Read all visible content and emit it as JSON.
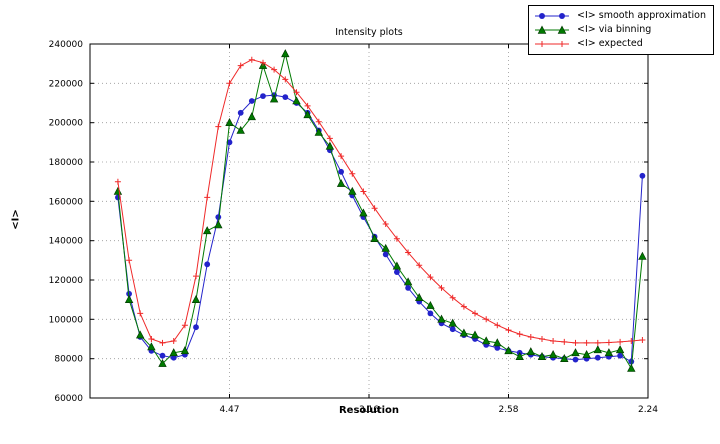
{
  "chart_data": {
    "type": "line",
    "title": "Intensity plots",
    "xlabel": "Resolution",
    "ylabel": "<I>",
    "grid": true,
    "legend_position": "upper right, outside plot top",
    "x_axis": {
      "range": [
        0,
        0.2
      ],
      "note": "reciprocal resolution squared scale; ticks labeled in Angstrom resolution",
      "ticks": [
        {
          "value": 0.05,
          "label": "4.47"
        },
        {
          "value": 0.1,
          "label": "3.16"
        },
        {
          "value": 0.15,
          "label": "2.58"
        },
        {
          "value": 0.2,
          "label": "2.24"
        }
      ]
    },
    "y_axis": {
      "range": [
        60000,
        240000
      ],
      "ticks": [
        {
          "value": 60000,
          "label": "60000"
        },
        {
          "value": 80000,
          "label": "80000"
        },
        {
          "value": 100000,
          "label": "100000"
        },
        {
          "value": 120000,
          "label": "120000"
        },
        {
          "value": 140000,
          "label": "140000"
        },
        {
          "value": 160000,
          "label": "160000"
        },
        {
          "value": 180000,
          "label": "180000"
        },
        {
          "value": 200000,
          "label": "200000"
        },
        {
          "value": 220000,
          "label": "220000"
        },
        {
          "value": 240000,
          "label": "240000"
        }
      ]
    },
    "x": [
      0.01,
      0.014,
      0.018,
      0.022,
      0.026,
      0.03,
      0.034,
      0.038,
      0.042,
      0.046,
      0.05,
      0.054,
      0.058,
      0.062,
      0.066,
      0.07,
      0.074,
      0.078,
      0.082,
      0.086,
      0.09,
      0.094,
      0.098,
      0.102,
      0.106,
      0.11,
      0.114,
      0.118,
      0.122,
      0.126,
      0.13,
      0.134,
      0.138,
      0.142,
      0.146,
      0.15,
      0.154,
      0.158,
      0.162,
      0.166,
      0.17,
      0.174,
      0.178,
      0.182,
      0.186,
      0.19,
      0.194,
      0.198
    ],
    "series": [
      {
        "id": "smooth-approximation",
        "name": "<I> smooth approximation",
        "color": "#2323cb",
        "marker": "circle",
        "values": [
          162000,
          113000,
          91000,
          84000,
          81500,
          80500,
          82000,
          96000,
          128000,
          152000,
          190000,
          205000,
          211000,
          213500,
          214000,
          213000,
          210000,
          205000,
          196000,
          186000,
          175000,
          163000,
          152000,
          142000,
          133000,
          124000,
          116000,
          109000,
          103000,
          98000,
          95000,
          92000,
          90000,
          87000,
          85500,
          84000,
          83000,
          82000,
          81000,
          80500,
          80000,
          79500,
          80000,
          80500,
          81000,
          81500,
          78500,
          173000
        ]
      },
      {
        "id": "via-binning",
        "name": "<I> via binning",
        "color": "#007a00",
        "marker": "triangle",
        "values": [
          165000,
          110000,
          92000,
          86000,
          77500,
          83000,
          84000,
          110000,
          145000,
          148000,
          200000,
          196000,
          203000,
          229000,
          212000,
          235000,
          211000,
          204000,
          195000,
          188000,
          169000,
          165000,
          154000,
          141000,
          136000,
          127000,
          119000,
          111000,
          107000,
          100000,
          98000,
          93000,
          92000,
          89000,
          88000,
          84000,
          81000,
          83500,
          81000,
          82000,
          80000,
          83000,
          82000,
          84500,
          83000,
          84500,
          75000,
          132000
        ]
      },
      {
        "id": "expected",
        "name": "<I> expected",
        "color": "#ef2929",
        "marker": "plus",
        "values": [
          170000,
          130000,
          103000,
          90000,
          88000,
          89000,
          97000,
          122000,
          162000,
          198000,
          220000,
          229000,
          232000,
          230500,
          227000,
          222000,
          215500,
          208500,
          200500,
          192000,
          183000,
          174000,
          165000,
          156500,
          148500,
          141000,
          134000,
          127500,
          121500,
          116000,
          111000,
          106500,
          103000,
          100000,
          97000,
          94500,
          92500,
          91000,
          90000,
          89000,
          88500,
          88000,
          88000,
          88000,
          88200,
          88500,
          89000,
          89500
        ]
      }
    ]
  }
}
